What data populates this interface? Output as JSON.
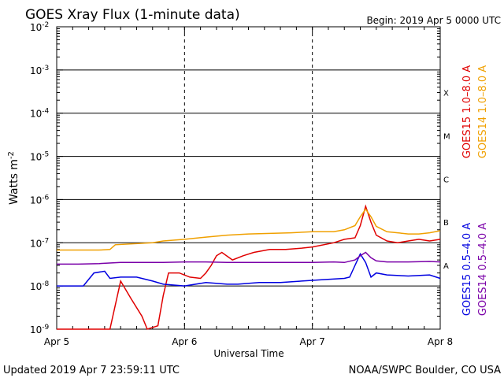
{
  "chart_data": {
    "type": "line",
    "title": "GOES Xray Flux (1-minute data)",
    "begin_label": "Begin:  2019 Apr 5 0000 UTC",
    "ylabel": "Watts m",
    "ylabel_sup": "-2",
    "xlabel": "Universal Time",
    "y_scale": "log",
    "ylim": [
      1e-09,
      0.01
    ],
    "y_ticks": [
      {
        "base": "10",
        "exp": "-9",
        "value": 1e-09
      },
      {
        "base": "10",
        "exp": "-8",
        "value": 1e-08
      },
      {
        "base": "10",
        "exp": "-7",
        "value": 1e-07
      },
      {
        "base": "10",
        "exp": "-6",
        "value": 1e-06
      },
      {
        "base": "10",
        "exp": "-5",
        "value": 1e-05
      },
      {
        "base": "10",
        "exp": "-4",
        "value": 0.0001
      },
      {
        "base": "10",
        "exp": "-3",
        "value": 0.001
      },
      {
        "base": "10",
        "exp": "-2",
        "value": 0.01
      }
    ],
    "x_unit": "hours since 2019 Apr 5 0000 UTC",
    "xlim": [
      0,
      72
    ],
    "x_ticks": [
      {
        "label": "Apr 5",
        "value": 0
      },
      {
        "label": "Apr 6",
        "value": 24
      },
      {
        "label": "Apr 7",
        "value": 48
      },
      {
        "label": "Apr 8",
        "value": 72
      }
    ],
    "flare_classes": [
      {
        "label": "A",
        "value": 3e-08
      },
      {
        "label": "B",
        "value": 3e-07
      },
      {
        "label": "C",
        "value": 3e-06
      },
      {
        "label": "M",
        "value": 3e-05
      },
      {
        "label": "X",
        "value": 0.0003
      }
    ],
    "grid_lines": [
      1e-08,
      1e-07,
      1e-06,
      1e-05,
      0.0001,
      0.001
    ],
    "series": [
      {
        "name": "GOES15 1.0–8.0 A",
        "color": "#e00000",
        "points": [
          [
            0,
            1e-09
          ],
          [
            10,
            1e-09
          ],
          [
            12,
            1.3e-08
          ],
          [
            14,
            5e-09
          ],
          [
            16,
            2e-09
          ],
          [
            17,
            1e-09
          ],
          [
            19,
            1.2e-09
          ],
          [
            20,
            6e-09
          ],
          [
            21,
            2e-08
          ],
          [
            23,
            2e-08
          ],
          [
            25,
            1.6e-08
          ],
          [
            27,
            1.5e-08
          ],
          [
            28,
            2e-08
          ],
          [
            29,
            3e-08
          ],
          [
            30,
            5e-08
          ],
          [
            31,
            6e-08
          ],
          [
            33,
            4e-08
          ],
          [
            35,
            5e-08
          ],
          [
            37,
            6e-08
          ],
          [
            40,
            7e-08
          ],
          [
            43,
            7e-08
          ],
          [
            46,
            7.5e-08
          ],
          [
            48,
            8e-08
          ],
          [
            52,
            1e-07
          ],
          [
            54,
            1.2e-07
          ],
          [
            56,
            1.3e-07
          ],
          [
            57,
            2.5e-07
          ],
          [
            58,
            7e-07
          ],
          [
            59,
            3e-07
          ],
          [
            60,
            1.5e-07
          ],
          [
            62,
            1.1e-07
          ],
          [
            64,
            1e-07
          ],
          [
            66,
            1.1e-07
          ],
          [
            68,
            1.2e-07
          ],
          [
            70,
            1.1e-07
          ],
          [
            72,
            1.2e-07
          ]
        ]
      },
      {
        "name": "GOES14 1.0–8.0 A",
        "color": "#f0a000",
        "points": [
          [
            0,
            6.8e-08
          ],
          [
            8,
            6.8e-08
          ],
          [
            10,
            7e-08
          ],
          [
            11,
            9e-08
          ],
          [
            18,
            1e-07
          ],
          [
            20,
            1.1e-07
          ],
          [
            24,
            1.2e-07
          ],
          [
            28,
            1.35e-07
          ],
          [
            32,
            1.5e-07
          ],
          [
            36,
            1.6e-07
          ],
          [
            40,
            1.65e-07
          ],
          [
            44,
            1.7e-07
          ],
          [
            48,
            1.8e-07
          ],
          [
            52,
            1.8e-07
          ],
          [
            54,
            2e-07
          ],
          [
            56,
            2.5e-07
          ],
          [
            57,
            4e-07
          ],
          [
            58,
            6e-07
          ],
          [
            59,
            4e-07
          ],
          [
            60,
            2.4e-07
          ],
          [
            62,
            1.8e-07
          ],
          [
            64,
            1.7e-07
          ],
          [
            66,
            1.6e-07
          ],
          [
            68,
            1.6e-07
          ],
          [
            70,
            1.7e-07
          ],
          [
            72,
            1.9e-07
          ]
        ]
      },
      {
        "name": "GOES15 0.5–4.0 A",
        "color": "#0000e0",
        "points": [
          [
            0,
            1e-08
          ],
          [
            2,
            1e-08
          ],
          [
            5,
            1e-08
          ],
          [
            7,
            2e-08
          ],
          [
            9,
            2.2e-08
          ],
          [
            10,
            1.5e-08
          ],
          [
            12,
            1.6e-08
          ],
          [
            15,
            1.6e-08
          ],
          [
            18,
            1.3e-08
          ],
          [
            20,
            1.1e-08
          ],
          [
            24,
            1e-08
          ],
          [
            28,
            1.2e-08
          ],
          [
            32,
            1.1e-08
          ],
          [
            34,
            1.1e-08
          ],
          [
            38,
            1.2e-08
          ],
          [
            42,
            1.2e-08
          ],
          [
            46,
            1.3e-08
          ],
          [
            50,
            1.4e-08
          ],
          [
            54,
            1.5e-08
          ],
          [
            55,
            1.6e-08
          ],
          [
            56,
            3e-08
          ],
          [
            57,
            5.5e-08
          ],
          [
            58,
            3.5e-08
          ],
          [
            59,
            1.6e-08
          ],
          [
            60,
            2e-08
          ],
          [
            62,
            1.8e-08
          ],
          [
            66,
            1.7e-08
          ],
          [
            70,
            1.8e-08
          ],
          [
            72,
            1.5e-08
          ]
        ]
      },
      {
        "name": "GOES14 0.5–4.0 A",
        "color": "#7a00a8",
        "points": [
          [
            0,
            3.2e-08
          ],
          [
            4,
            3.2e-08
          ],
          [
            8,
            3.3e-08
          ],
          [
            12,
            3.5e-08
          ],
          [
            16,
            3.5e-08
          ],
          [
            20,
            3.5e-08
          ],
          [
            24,
            3.6e-08
          ],
          [
            28,
            3.6e-08
          ],
          [
            32,
            3.5e-08
          ],
          [
            36,
            3.5e-08
          ],
          [
            40,
            3.5e-08
          ],
          [
            44,
            3.5e-08
          ],
          [
            48,
            3.5e-08
          ],
          [
            52,
            3.6e-08
          ],
          [
            54,
            3.5e-08
          ],
          [
            56,
            4e-08
          ],
          [
            57,
            5e-08
          ],
          [
            58,
            6e-08
          ],
          [
            59,
            4.5e-08
          ],
          [
            60,
            3.8e-08
          ],
          [
            62,
            3.6e-08
          ],
          [
            66,
            3.6e-08
          ],
          [
            70,
            3.7e-08
          ],
          [
            72,
            3.6e-08
          ]
        ]
      }
    ],
    "legend_placement": "right, rotated vertical"
  },
  "footer": {
    "updated": "Updated 2019 Apr  7 23:59:11 UTC",
    "credit": "NOAA/SWPC Boulder, CO USA"
  }
}
